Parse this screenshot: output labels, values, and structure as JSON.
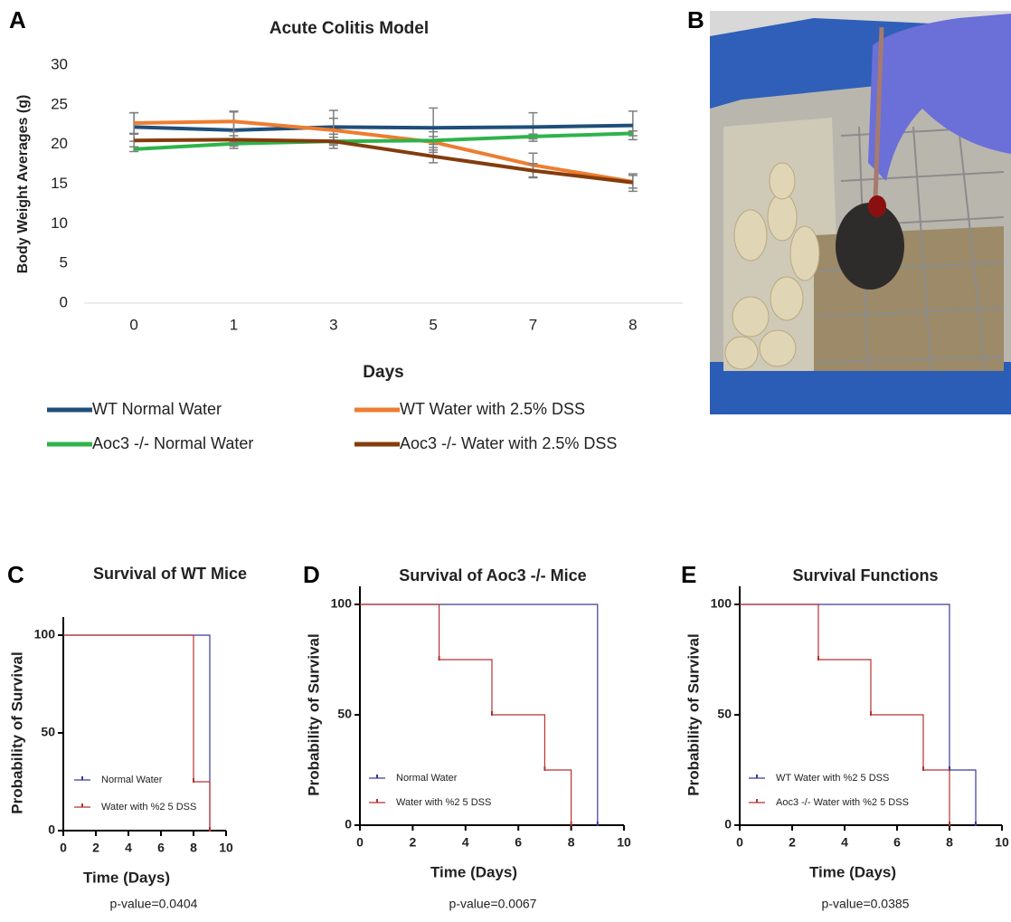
{
  "photo_panel": {
    "label": "B"
  },
  "chart_data": [
    {
      "type": "line",
      "panel": "A",
      "title": "Acute Colitis Model",
      "x_label": "Days",
      "y_label": "Body Weight Averages (g)",
      "categories": [
        "0",
        "1",
        "3",
        "5",
        "7",
        "8"
      ],
      "ylim": [
        0,
        30
      ],
      "yticks": [
        0,
        5,
        10,
        15,
        20,
        25,
        30
      ],
      "series": [
        {
          "name": "WT Normal Water",
          "color": "#1f4e79",
          "values": [
            22.2,
            21.8,
            22.2,
            22.1,
            22.2,
            22.4
          ],
          "errors": [
            1.8,
            2.3,
            2.1,
            2.5,
            1.8,
            1.8
          ]
        },
        {
          "name": "WT Water with 2.5% DSS",
          "color": "#ed7d31",
          "values": [
            22.7,
            22.9,
            21.8,
            20.3,
            17.4,
            15.3
          ],
          "errors": [
            1.3,
            1.3,
            1.5,
            1.3,
            1.5,
            0.8
          ]
        },
        {
          "name": "Aoc3 -/- Normal Water",
          "color": "#2fb34a",
          "values": [
            19.4,
            20.1,
            20.4,
            20.5,
            21.0,
            21.4
          ],
          "errors": [
            0.3,
            0.3,
            0.5,
            0.5,
            0.3,
            0.3
          ]
        },
        {
          "name": "Aoc3 -/- Water with 2.5% DSS",
          "color": "#843c0c",
          "values": [
            20.5,
            20.6,
            20.4,
            18.5,
            16.7,
            15.2
          ],
          "errors": [
            0.8,
            0.5,
            0.9,
            0.8,
            0.9,
            1.1
          ]
        }
      ]
    },
    {
      "type": "step",
      "panel": "C",
      "title": "Survival of WT Mice",
      "x_label": "Time (Days)",
      "y_label": "Probability of Survival",
      "note": "p-value=0.0404",
      "xlim": [
        0,
        10
      ],
      "xticks": [
        0,
        2,
        4,
        6,
        8,
        10
      ],
      "ylim": [
        0,
        100
      ],
      "yticks": [
        0,
        50,
        100
      ],
      "series": [
        {
          "name": "Normal Water",
          "color": "#3a3a9e",
          "x": [
            0,
            9
          ],
          "values": [
            100,
            0
          ]
        },
        {
          "name": "Water with %2 5 DSS",
          "color": "#b83232",
          "x": [
            0,
            8,
            9
          ],
          "values": [
            100,
            25,
            0
          ]
        }
      ]
    },
    {
      "type": "step",
      "panel": "D",
      "title": "Survival of Aoc3 -/- Mice",
      "x_label": "Time (Days)",
      "y_label": "Probability of Survival",
      "note": "p-value=0.0067",
      "xlim": [
        0,
        10
      ],
      "xticks": [
        0,
        2,
        4,
        6,
        8,
        10
      ],
      "ylim": [
        0,
        100
      ],
      "yticks": [
        0,
        50,
        100
      ],
      "series": [
        {
          "name": "Normal Water",
          "color": "#3a3a9e",
          "x": [
            0,
            9
          ],
          "values": [
            100,
            0
          ]
        },
        {
          "name": "Water with %2 5 DSS",
          "color": "#b83232",
          "x": [
            0,
            3,
            5,
            7,
            8
          ],
          "values": [
            100,
            75,
            50,
            25,
            0
          ]
        }
      ]
    },
    {
      "type": "step",
      "panel": "E",
      "title": "Survival Functions",
      "x_label": "Time (Days)",
      "y_label": "Probability of Survival",
      "note": "p-value=0.0385",
      "xlim": [
        0,
        10
      ],
      "xticks": [
        0,
        2,
        4,
        6,
        8,
        10
      ],
      "ylim": [
        0,
        100
      ],
      "yticks": [
        0,
        50,
        100
      ],
      "series": [
        {
          "name": "WT Water with %2 5 DSS",
          "color": "#3a3a9e",
          "x": [
            0,
            8,
            9
          ],
          "values": [
            100,
            25,
            0
          ]
        },
        {
          "name": "Aoc3 -/- Water with %2 5 DSS",
          "color": "#b83232",
          "x": [
            0,
            3,
            5,
            7,
            8
          ],
          "values": [
            100,
            75,
            50,
            25,
            0
          ]
        }
      ]
    }
  ]
}
